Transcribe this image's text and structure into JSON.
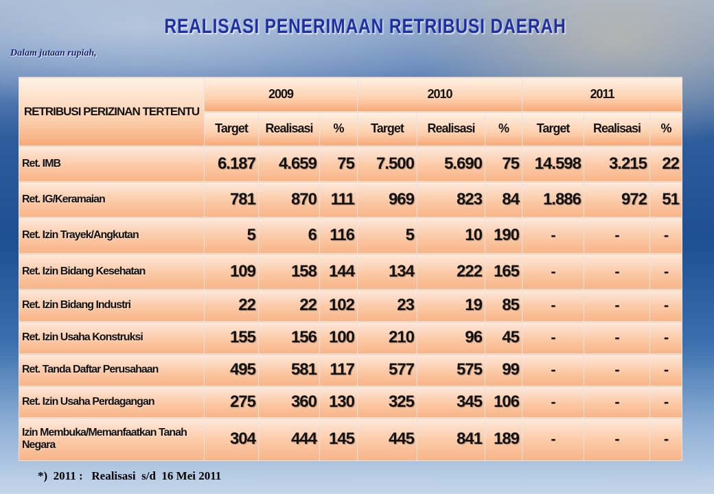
{
  "title": "REALISASI PENERIMAAN RETRIBUSI DAERAH",
  "subtitle": "Dalam jutaan rupiah,",
  "table": {
    "corner_header": "RETRIBUSI PERIZINAN TERTENTU",
    "years": [
      {
        "year": "2009",
        "columns": [
          "Target",
          "Realisasi",
          "%"
        ]
      },
      {
        "year": "2010",
        "columns": [
          "Target",
          "Realisasi",
          "%"
        ]
      },
      {
        "year": "2011",
        "columns": [
          "Target",
          "Realisasi",
          "%"
        ]
      }
    ],
    "rows": [
      {
        "label": "Ret. IMB",
        "values": [
          "6.187",
          "4.659",
          "75",
          "7.500",
          "5.690",
          "75",
          "14.598",
          "3.215",
          "22"
        ]
      },
      {
        "label": "Ret. IG/Keramaian",
        "values": [
          "781",
          "870",
          "111",
          "969",
          "823",
          "84",
          "1.886",
          "972",
          "51"
        ]
      },
      {
        "label": "Ret. Izin Trayek/Angkutan",
        "values": [
          "5",
          "6",
          "116",
          "5",
          "10",
          "190",
          "-",
          "-",
          "-"
        ]
      },
      {
        "label": "Ret. Izin Bidang Kesehatan",
        "values": [
          "109",
          "158",
          "144",
          "134",
          "222",
          "165",
          "-",
          "-",
          "-"
        ]
      },
      {
        "label": "Ret. Izin Bidang Industri",
        "values": [
          "22",
          "22",
          "102",
          "23",
          "19",
          "85",
          "-",
          "-",
          "-"
        ]
      },
      {
        "label": "Ret. Izin Usaha Konstruksi",
        "values": [
          "155",
          "156",
          "100",
          "210",
          "96",
          "45",
          "-",
          "-",
          "-"
        ]
      },
      {
        "label": "Ret. Tanda Daftar Perusahaan",
        "values": [
          "495",
          "581",
          "117",
          "577",
          "575",
          "99",
          "-",
          "-",
          "-"
        ]
      },
      {
        "label": "Ret. Izin Usaha Perdagangan",
        "values": [
          "275",
          "360",
          "130",
          "325",
          "345",
          "106",
          "-",
          "-",
          "-"
        ]
      },
      {
        "label": "Izin Membuka/Memanfaatkan Tanah Negara",
        "values": [
          "304",
          "444",
          "145",
          "445",
          "841",
          "189",
          "-",
          "-",
          "-"
        ]
      }
    ]
  },
  "footnote": "*)  2011 :   Realisasi  s/d  16 Mei 2011"
}
